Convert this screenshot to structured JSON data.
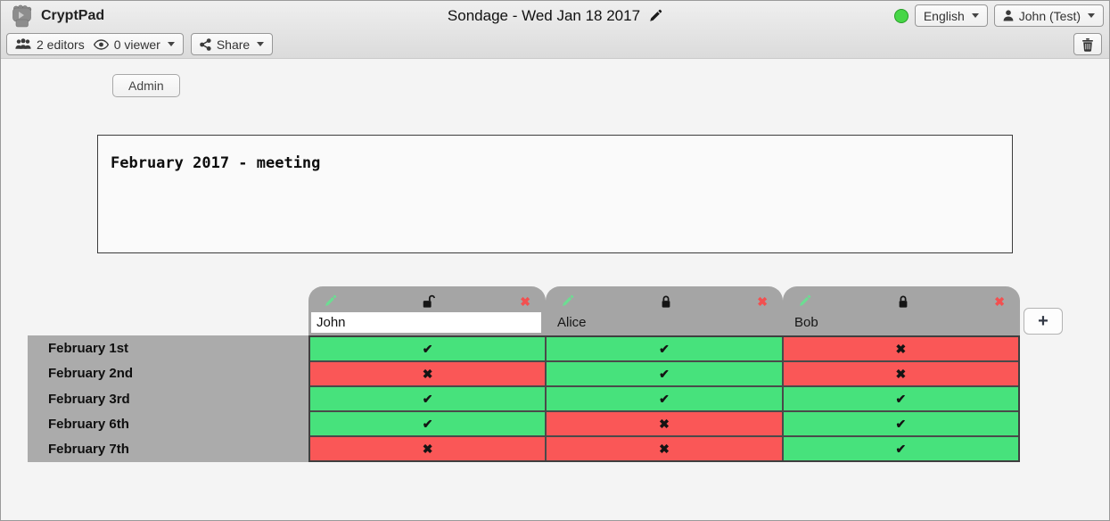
{
  "toolbar": {
    "app_name": "CryptPad",
    "doc_title": "Sondage - Wed Jan 18 2017",
    "editors_count": "2 editors",
    "viewers_count": "0 viewer",
    "share_label": "Share",
    "language": "English",
    "username": "John (Test)",
    "status_color": "#47d647"
  },
  "admin": {
    "label": "Admin"
  },
  "description": {
    "text": "February 2017 - meeting"
  },
  "poll": {
    "columns": [
      {
        "name": "John",
        "locked": false,
        "editable": true
      },
      {
        "name": "Alice",
        "locked": true,
        "editable": false
      },
      {
        "name": "Bob",
        "locked": true,
        "editable": false
      }
    ],
    "rows": [
      {
        "label": "February 1st",
        "votes": [
          "yes",
          "yes",
          "no"
        ]
      },
      {
        "label": "February 2nd",
        "votes": [
          "no",
          "yes",
          "no"
        ]
      },
      {
        "label": "February 3rd",
        "votes": [
          "yes",
          "yes",
          "yes"
        ]
      },
      {
        "label": "February 6th",
        "votes": [
          "yes",
          "no",
          "yes"
        ]
      },
      {
        "label": "February 7th",
        "votes": [
          "no",
          "no",
          "yes"
        ]
      }
    ],
    "add_column_label": "+",
    "symbols": {
      "yes": "✔",
      "no": "✖",
      "remove": "✖"
    },
    "colors": {
      "yes_bg": "#47e27c",
      "no_bg": "#fa5757",
      "header_bg": "#a5a5a5",
      "labels_bg": "#ababab"
    }
  }
}
